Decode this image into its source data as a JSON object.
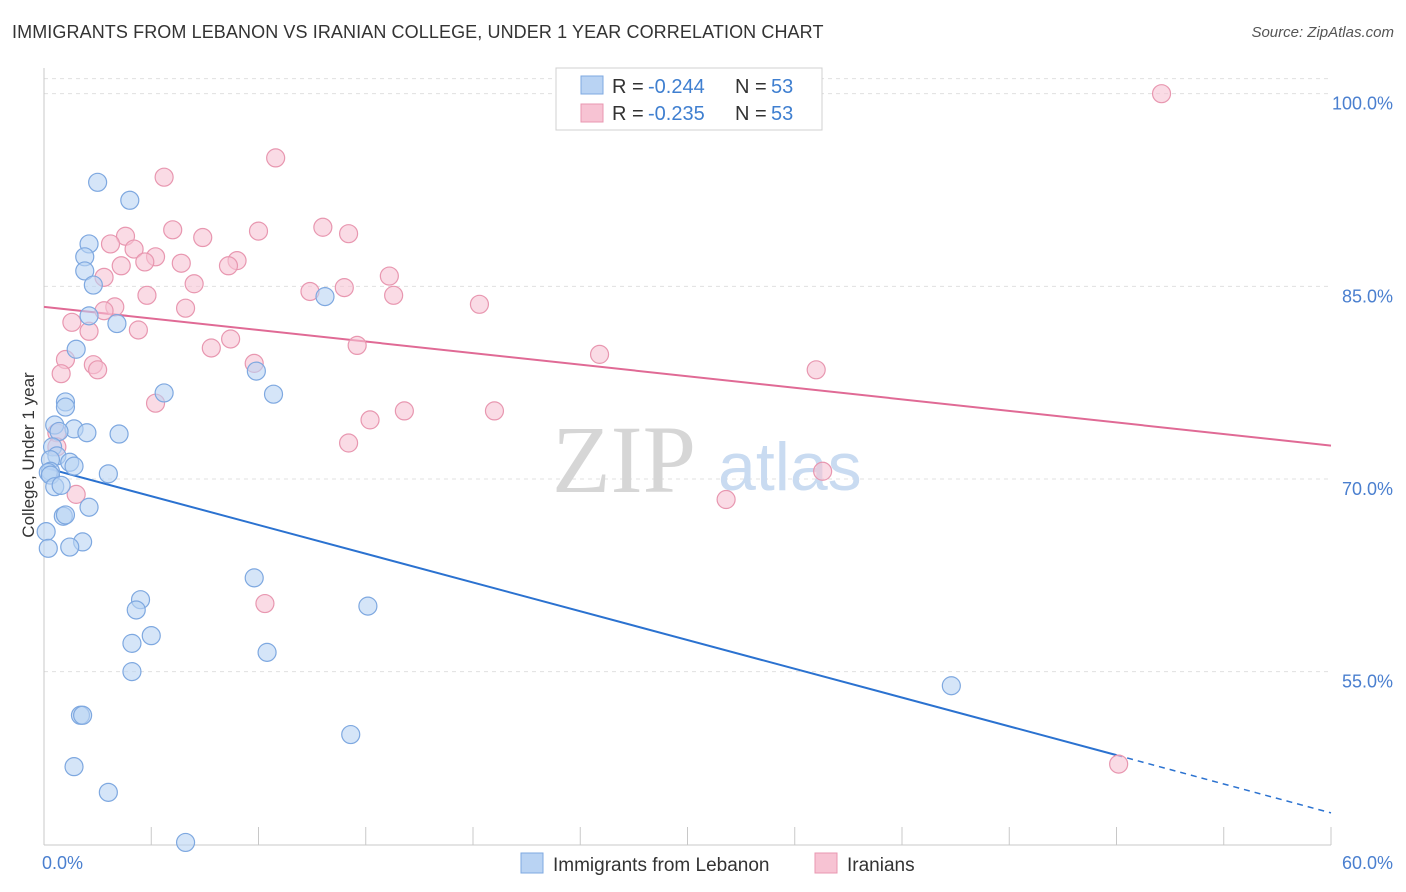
{
  "title": "IMMIGRANTS FROM LEBANON VS IRANIAN COLLEGE, UNDER 1 YEAR CORRELATION CHART",
  "source": "Source: ZipAtlas.com",
  "watermark": {
    "zip": "ZIP",
    "atlas": "atlas"
  },
  "colors": {
    "blue_fill": "#b9d3f3",
    "blue_stroke": "#7ea8e0",
    "blue_line": "#2b72d0",
    "pink_fill": "#f7c3d3",
    "pink_stroke": "#e897b0",
    "pink_line": "#e06a95",
    "grid": "#e0e0e0",
    "tick_text": "#4a7fcf"
  },
  "chart_data": {
    "type": "scatter",
    "title": "IMMIGRANTS FROM LEBANON VS IRANIAN COLLEGE, UNDER 1 YEAR CORRELATION CHART",
    "xlabel": "",
    "ylabel": "College, Under 1 year",
    "xlim": [
      0,
      60
    ],
    "ylim": [
      41.5,
      102
    ],
    "x_tick_labels": {
      "min": "0.0%",
      "max": "60.0%"
    },
    "y_ticks": [
      {
        "value": 100,
        "label": "100.0%"
      },
      {
        "value": 85,
        "label": "85.0%"
      },
      {
        "value": 70,
        "label": "70.0%"
      },
      {
        "value": 55,
        "label": "55.0%"
      }
    ],
    "legend": {
      "top": [
        {
          "r_label": "R = ",
          "r_value": "-0.244",
          "n_label": "N = ",
          "n_value": "53"
        },
        {
          "r_label": "R = ",
          "r_value": "-0.235",
          "n_label": "N = ",
          "n_value": "53"
        }
      ],
      "bottom": [
        "Immigrants from Lebanon",
        "Iranians"
      ]
    },
    "series": [
      {
        "name": "Immigrants from Lebanon",
        "points": [
          [
            2.5,
            93.1
          ],
          [
            4.0,
            91.7
          ],
          [
            2.1,
            88.3
          ],
          [
            1.9,
            87.3
          ],
          [
            1.9,
            86.2
          ],
          [
            2.3,
            85.1
          ],
          [
            13.1,
            84.2
          ],
          [
            2.1,
            82.7
          ],
          [
            3.4,
            82.1
          ],
          [
            1.5,
            80.1
          ],
          [
            9.9,
            78.4
          ],
          [
            5.6,
            76.7
          ],
          [
            10.7,
            76.6
          ],
          [
            1.0,
            76.0
          ],
          [
            1.0,
            75.6
          ],
          [
            0.5,
            74.2
          ],
          [
            1.4,
            73.9
          ],
          [
            0.7,
            73.7
          ],
          [
            2.0,
            73.6
          ],
          [
            3.5,
            73.5
          ],
          [
            0.4,
            72.5
          ],
          [
            0.6,
            71.8
          ],
          [
            0.3,
            71.5
          ],
          [
            1.2,
            71.3
          ],
          [
            1.4,
            71.0
          ],
          [
            0.3,
            70.6
          ],
          [
            0.2,
            70.5
          ],
          [
            0.3,
            70.3
          ],
          [
            3.0,
            70.4
          ],
          [
            0.5,
            69.4
          ],
          [
            0.8,
            69.5
          ],
          [
            2.1,
            67.8
          ],
          [
            0.9,
            67.1
          ],
          [
            1.0,
            67.2
          ],
          [
            0.1,
            65.9
          ],
          [
            1.8,
            65.1
          ],
          [
            1.2,
            64.7
          ],
          [
            9.8,
            62.3
          ],
          [
            4.5,
            60.6
          ],
          [
            15.1,
            60.1
          ],
          [
            4.3,
            59.8
          ],
          [
            5.0,
            57.8
          ],
          [
            4.1,
            57.2
          ],
          [
            10.4,
            56.5
          ],
          [
            4.1,
            55.0
          ],
          [
            42.3,
            53.9
          ],
          [
            1.7,
            51.6
          ],
          [
            1.8,
            51.6
          ],
          [
            14.3,
            50.1
          ],
          [
            1.4,
            47.6
          ],
          [
            3.0,
            45.6
          ],
          [
            6.6,
            41.7
          ],
          [
            0.2,
            64.6
          ]
        ],
        "trend": {
          "x0": 0,
          "y0": 70.9,
          "x1": 50.0,
          "y1": 48.5,
          "dash_to_x": 60.0,
          "dash_to_y": 44.0
        }
      },
      {
        "name": "Iranians",
        "points": [
          [
            52.1,
            100.0
          ],
          [
            10.8,
            95.0
          ],
          [
            5.6,
            93.5
          ],
          [
            10.0,
            89.3
          ],
          [
            13.0,
            89.6
          ],
          [
            14.2,
            89.1
          ],
          [
            6.0,
            89.4
          ],
          [
            7.4,
            88.8
          ],
          [
            3.8,
            88.9
          ],
          [
            3.1,
            88.3
          ],
          [
            4.2,
            87.9
          ],
          [
            5.2,
            87.3
          ],
          [
            4.7,
            86.9
          ],
          [
            9.0,
            87.0
          ],
          [
            6.4,
            86.8
          ],
          [
            3.6,
            86.6
          ],
          [
            8.6,
            86.6
          ],
          [
            2.8,
            85.7
          ],
          [
            16.1,
            85.8
          ],
          [
            7.0,
            85.2
          ],
          [
            12.4,
            84.6
          ],
          [
            14.0,
            84.9
          ],
          [
            16.3,
            84.3
          ],
          [
            4.8,
            84.3
          ],
          [
            20.3,
            83.6
          ],
          [
            3.3,
            83.4
          ],
          [
            6.6,
            83.3
          ],
          [
            2.8,
            83.1
          ],
          [
            1.3,
            82.2
          ],
          [
            2.1,
            81.5
          ],
          [
            4.4,
            81.6
          ],
          [
            8.7,
            80.9
          ],
          [
            7.8,
            80.2
          ],
          [
            14.6,
            80.4
          ],
          [
            25.9,
            79.7
          ],
          [
            1.0,
            79.3
          ],
          [
            2.3,
            78.9
          ],
          [
            9.8,
            79.0
          ],
          [
            2.5,
            78.5
          ],
          [
            36.0,
            78.5
          ],
          [
            0.8,
            78.2
          ],
          [
            5.2,
            75.9
          ],
          [
            16.8,
            75.3
          ],
          [
            21.0,
            75.3
          ],
          [
            15.2,
            74.6
          ],
          [
            0.6,
            73.6
          ],
          [
            14.2,
            72.8
          ],
          [
            0.6,
            72.5
          ],
          [
            36.3,
            70.6
          ],
          [
            1.5,
            68.8
          ],
          [
            31.8,
            68.4
          ],
          [
            10.3,
            60.3
          ],
          [
            50.1,
            47.8
          ]
        ],
        "trend": {
          "x0": 0,
          "y0": 83.4,
          "x1": 60.0,
          "y1": 72.6
        }
      }
    ]
  }
}
